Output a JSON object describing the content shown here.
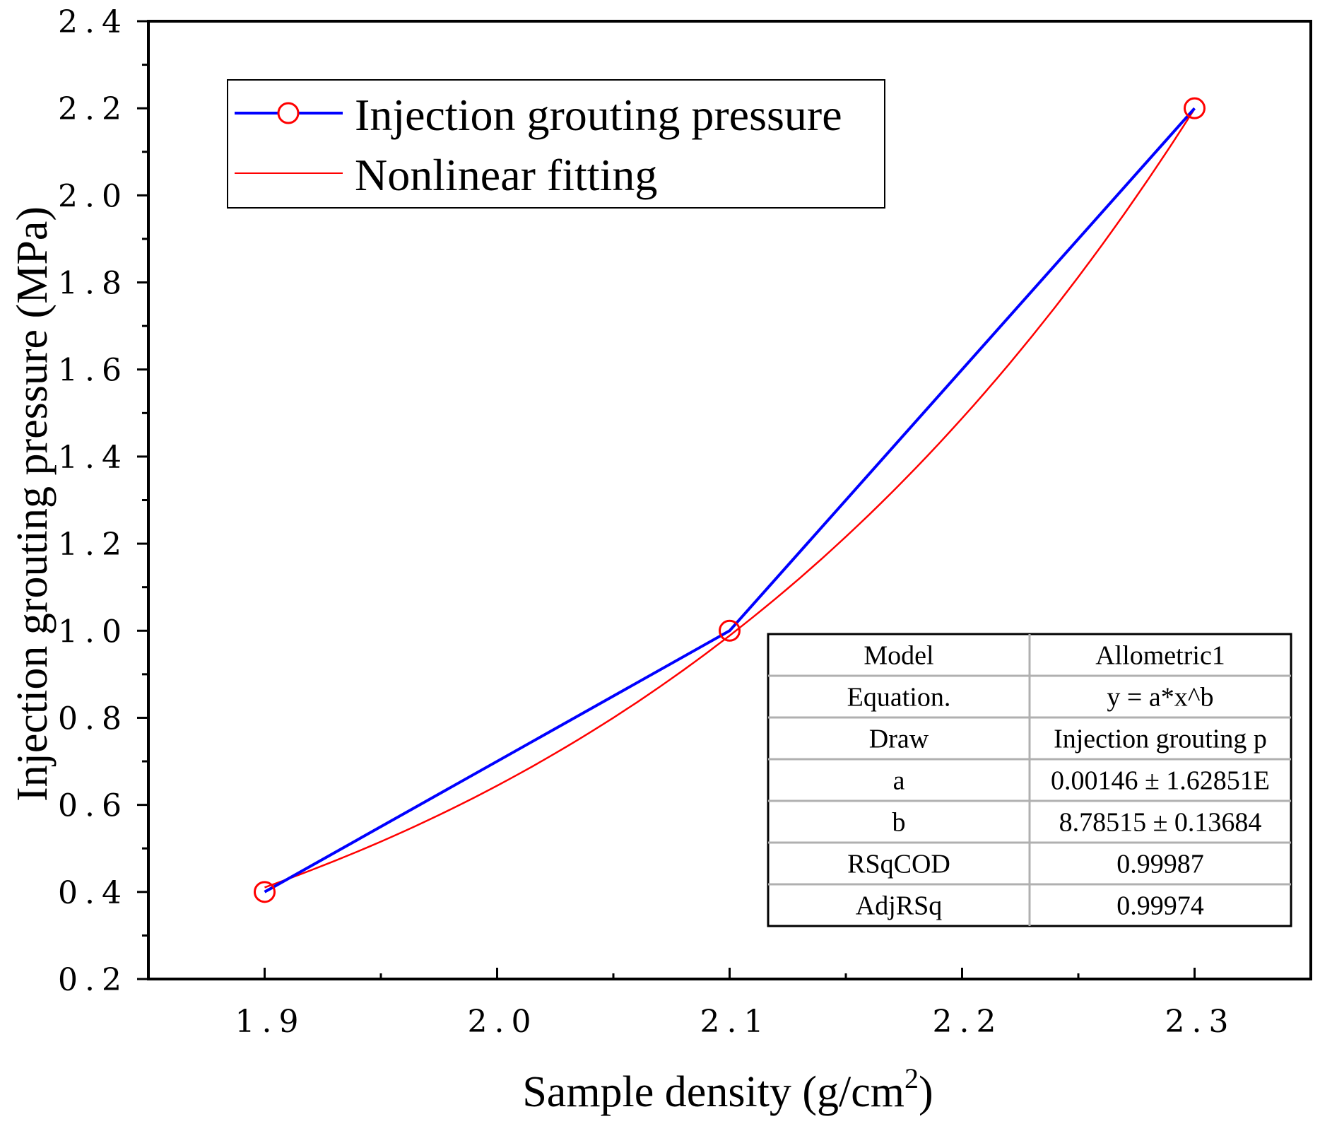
{
  "chart_data": {
    "type": "line",
    "xlabel": "Sample density (g/cm",
    "xlabel_sup": "2",
    "xlabel_close": ")",
    "ylabel": "Injection grouting pressure (MPa)",
    "xlim": [
      1.85,
      2.35
    ],
    "ylim": [
      0.2,
      2.4
    ],
    "x_ticks": [
      1.9,
      2.0,
      2.1,
      2.2,
      2.3
    ],
    "x_tick_labels": [
      "1.9",
      "2.0",
      "2.1",
      "2.2",
      "2.3"
    ],
    "y_ticks": [
      0.2,
      0.4,
      0.6,
      0.8,
      1.0,
      1.2,
      1.4,
      1.6,
      1.8,
      2.0,
      2.2,
      2.4
    ],
    "y_tick_labels": [
      "0.2",
      "0.4",
      "0.6",
      "0.8",
      "1.0",
      "1.2",
      "1.4",
      "1.6",
      "1.8",
      "2.0",
      "2.2",
      "2.4"
    ],
    "legend_position": "top-left",
    "series": [
      {
        "name": "Injection grouting pressure",
        "color": "#0000ff",
        "marker": "open-circle",
        "marker_color": "#ff0000",
        "x": [
          1.9,
          2.1,
          2.3
        ],
        "y": [
          0.4,
          1.0,
          2.2
        ]
      },
      {
        "name": "Nonlinear fitting",
        "color": "#ff0000",
        "model": "y = a*x^b",
        "a": 0.00146,
        "b": 8.78515,
        "x_range": [
          1.9,
          2.3
        ]
      }
    ],
    "fit_table": {
      "rows": [
        [
          "Model",
          "Allometric1"
        ],
        [
          "Equation.",
          "y = a*x^b"
        ],
        [
          "Draw",
          "Injection grouting p"
        ],
        [
          "a",
          "0.00146 ± 1.62851E"
        ],
        [
          "b",
          "8.78515 ± 0.13684"
        ],
        [
          "RSqCOD",
          "0.99987"
        ],
        [
          "AdjRSq",
          "0.99974"
        ]
      ]
    }
  }
}
